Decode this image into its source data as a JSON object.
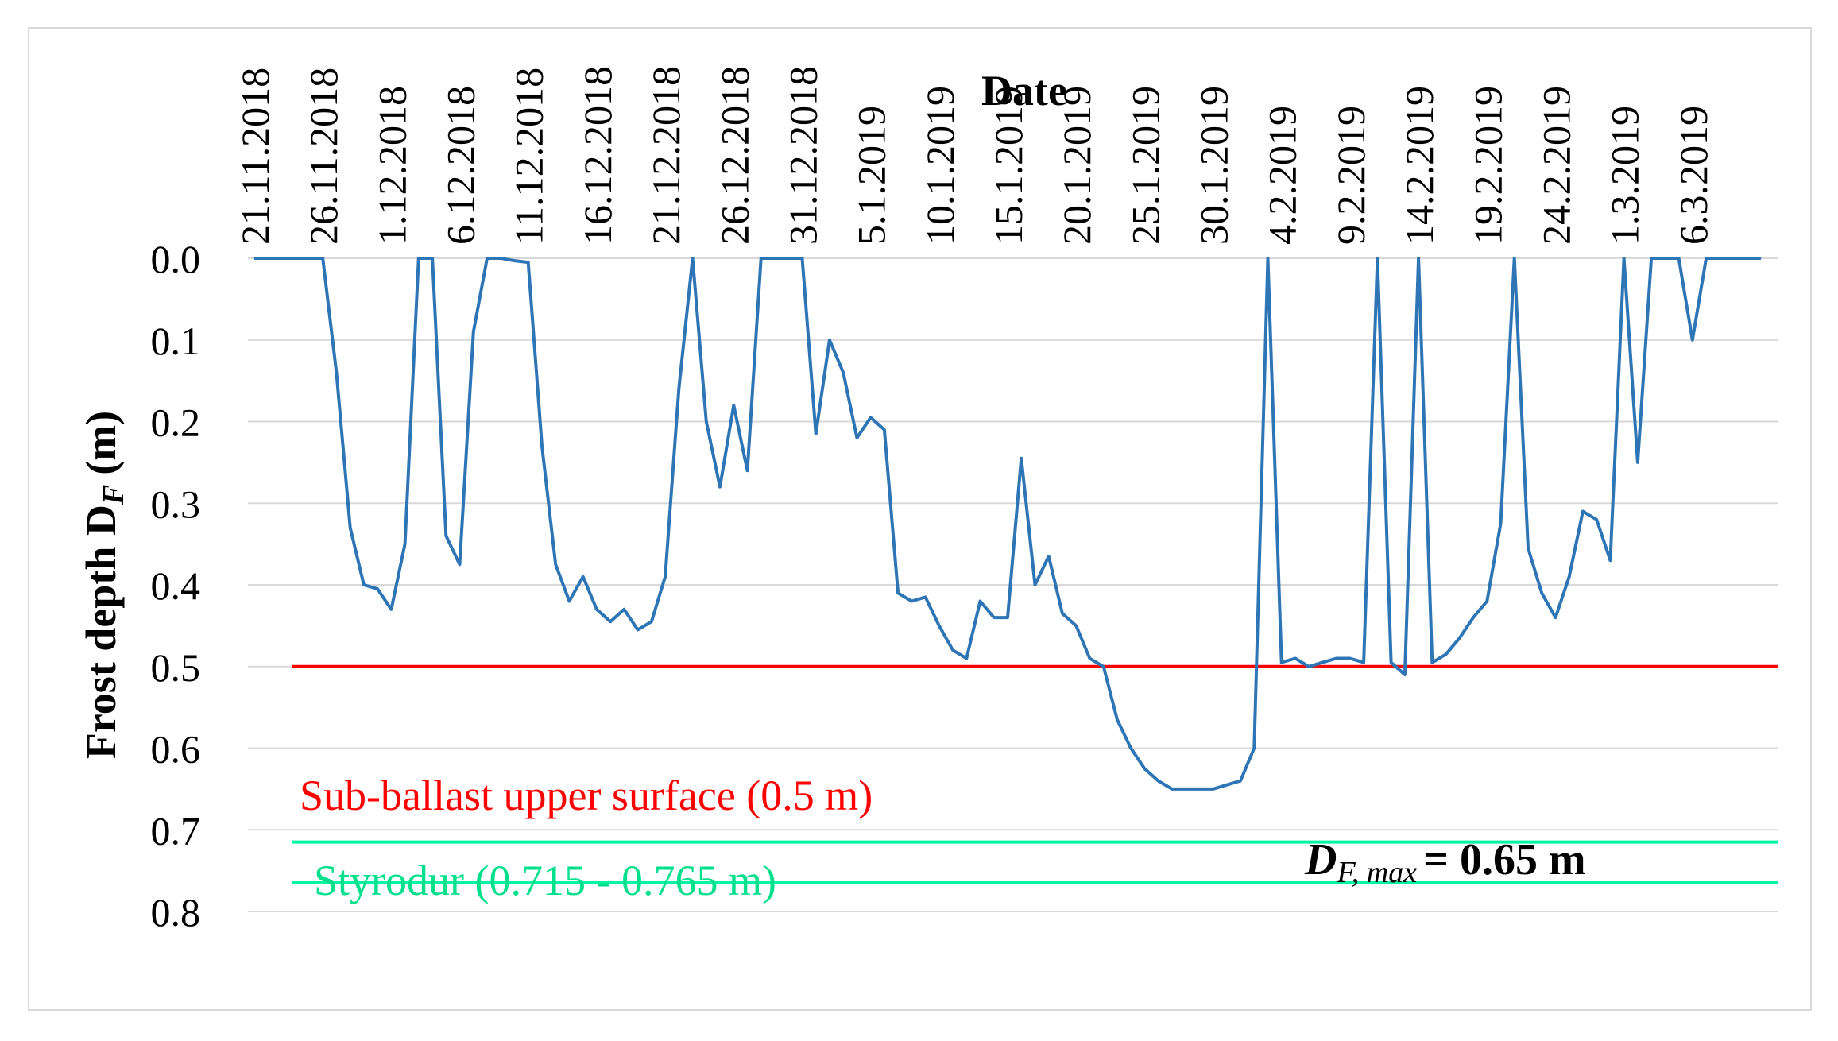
{
  "chart_data": {
    "type": "line",
    "title": "Date",
    "xlabel": "Date",
    "ylabel": "Frost depth D",
    "ylabel_subscript": "F",
    "ylabel_unit": "(m)",
    "y_inverted": true,
    "ylim": [
      0,
      0.8
    ],
    "yticks": [
      "0.0",
      "0.1",
      "0.2",
      "0.3",
      "0.4",
      "0.5",
      "0.6",
      "0.7",
      "0.8"
    ],
    "grid": true,
    "x_start_date": "21.11.2018",
    "x_end_date": "11.3.2019",
    "x_tick_labels": [
      "21.11.2018",
      "26.11.2018",
      "1.12.2018",
      "6.12.2018",
      "11.12.2018",
      "16.12.2018",
      "21.12.2018",
      "26.12.2018",
      "31.12.2018",
      "5.1.2019",
      "10.1.2019",
      "15.1.2019",
      "20.1.2019",
      "25.1.2019",
      "30.1.2019",
      "4.2.2019",
      "9.2.2019",
      "14.2.2019",
      "19.2.2019",
      "24.2.2019",
      "1.3.2019",
      "6.3.2019"
    ],
    "series": [
      {
        "name": "Frost depth",
        "color": "#2e75b6",
        "values": [
          0,
          0,
          0,
          0,
          0,
          0,
          0.14,
          0.33,
          0.4,
          0.405,
          0.43,
          0.35,
          0,
          0,
          0.34,
          0.375,
          0.09,
          0,
          0,
          0.003,
          0.005,
          0.23,
          0.375,
          0.42,
          0.39,
          0.43,
          0.445,
          0.43,
          0.455,
          0.445,
          0.39,
          0.16,
          0,
          0.2,
          0.28,
          0.18,
          0.26,
          0,
          0,
          0,
          0,
          0.215,
          0.1,
          0.14,
          0.22,
          0.195,
          0.21,
          0.41,
          0.42,
          0.415,
          0.45,
          0.48,
          0.49,
          0.42,
          0.44,
          0.44,
          0.245,
          0.4,
          0.365,
          0.435,
          0.45,
          0.49,
          0.5,
          0.565,
          0.6,
          0.625,
          0.64,
          0.65,
          0.65,
          0.65,
          0.65,
          0.645,
          0.64,
          0.6,
          0,
          0.495,
          0.49,
          0.5,
          0.495,
          0.49,
          0.49,
          0.495,
          0,
          0.495,
          0.51,
          0,
          0.495,
          0.485,
          0.465,
          0.44,
          0.42,
          0.325,
          0,
          0.355,
          0.41,
          0.44,
          0.39,
          0.31,
          0.32,
          0.37,
          0,
          0.25,
          0,
          0,
          0,
          0.1,
          0,
          0,
          0,
          0,
          0
        ]
      }
    ],
    "reference_lines": [
      {
        "name": "Sub-ballast upper surface",
        "value": 0.5,
        "color": "#ff0000"
      },
      {
        "name": "Styrodur top",
        "value": 0.715,
        "color": "#00f5a0"
      },
      {
        "name": "Styrodur bottom",
        "value": 0.765,
        "color": "#00f5a0"
      }
    ],
    "annotations": {
      "subballast_label": "Sub-ballast upper surface (0.5 m)",
      "styrodur_label": "Styrodur (0.715 - 0.765 m)",
      "df_max_label_main": "D",
      "df_max_label_sub": "F, max",
      "df_max_label_value": "= 0.65 m"
    }
  }
}
